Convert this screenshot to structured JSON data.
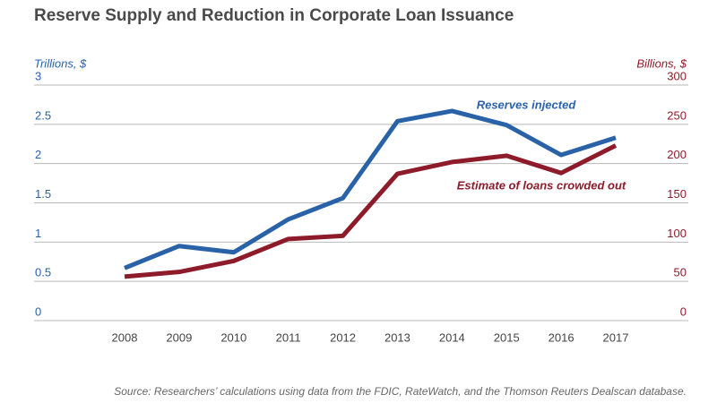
{
  "chart_data": {
    "type": "line",
    "title": "Reserve Supply and Reduction in Corporate Loan Issuance",
    "y_label": "Trillions, $",
    "y2_label": "Billions, $",
    "source": "Source: Researchers’ calculations using data from the FDIC, RateWatch, and the Thomson Reuters Dealscan database.",
    "categories": [
      "2008",
      "2009",
      "2010",
      "2011",
      "2012",
      "2013",
      "2014",
      "2015",
      "2016",
      "2017"
    ],
    "series": [
      {
        "name": "Reserves injected",
        "color": "#2a62a8",
        "axis": "y",
        "values": [
          0.67,
          0.95,
          0.87,
          1.29,
          1.56,
          2.54,
          2.67,
          2.49,
          2.11,
          2.33
        ]
      },
      {
        "name": "Estimate of loans crowded out",
        "color": "#8e1b2a",
        "axis": "y2",
        "values": [
          56,
          62,
          76,
          104,
          108,
          187,
          202,
          210,
          188,
          223
        ]
      }
    ],
    "ylim": [
      0,
      3
    ],
    "yticks": [
      0,
      0.5,
      1,
      1.5,
      2,
      2.5,
      3
    ],
    "y2lim": [
      0,
      300
    ],
    "y2ticks": [
      0,
      50,
      100,
      150,
      200,
      250,
      300
    ],
    "grid": true
  }
}
